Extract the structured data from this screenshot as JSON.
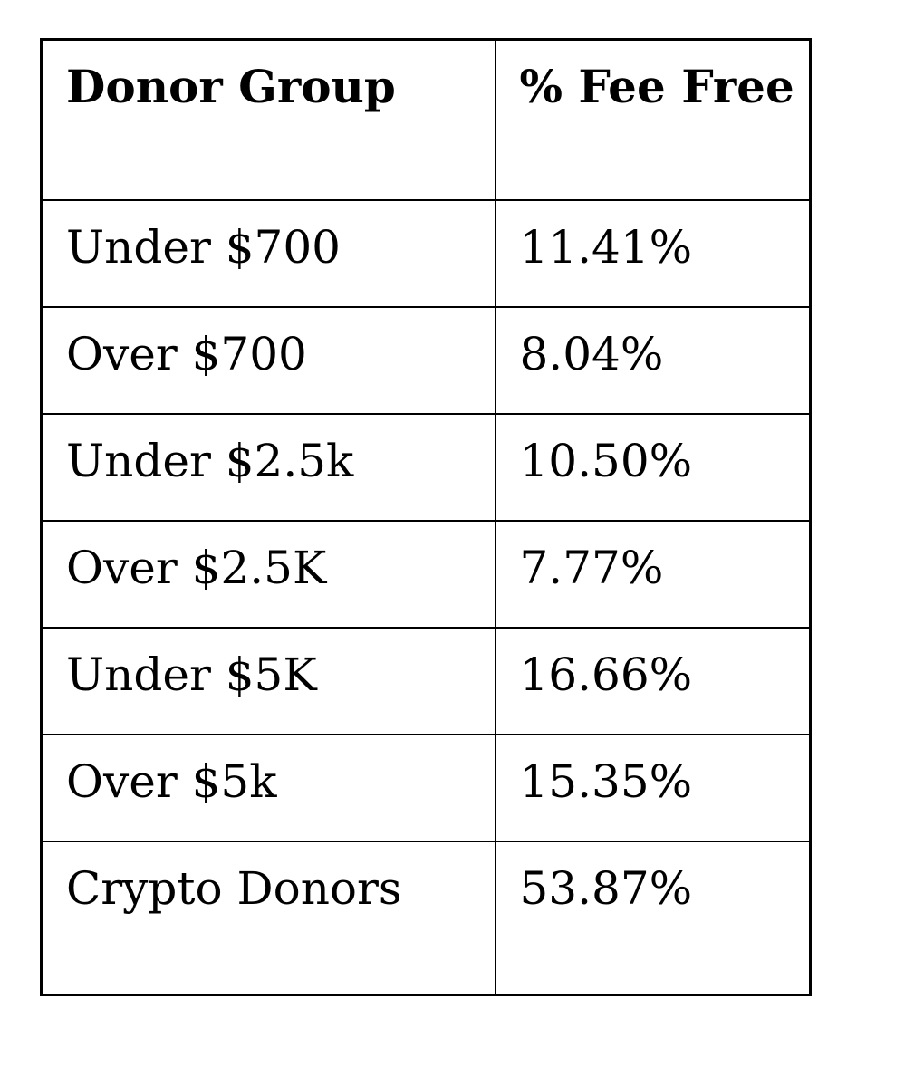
{
  "table": {
    "columns": [
      {
        "label": "Donor Group"
      },
      {
        "label": "% Fee Free"
      }
    ],
    "rows": [
      {
        "group": "Under $700",
        "fee_free": "11.41%"
      },
      {
        "group": "Over $700",
        "fee_free": "8.04%"
      },
      {
        "group": "Under $2.5k",
        "fee_free": "10.50%"
      },
      {
        "group": "Over $2.5K",
        "fee_free": "7.77%"
      },
      {
        "group": "Under $5K",
        "fee_free": "16.66%"
      },
      {
        "group": "Over $5k",
        "fee_free": "15.35%"
      },
      {
        "group": "Crypto Donors",
        "fee_free": "53.87%"
      }
    ],
    "border_color": "#000000",
    "text_color": "#000000",
    "background_color": "#ffffff"
  },
  "chart_data": {
    "type": "table",
    "title": "",
    "columns": [
      "Donor Group",
      "% Fee Free"
    ],
    "categories": [
      "Under $700",
      "Over $700",
      "Under $2.5k",
      "Over $2.5K",
      "Under $5K",
      "Over $5k",
      "Crypto Donors"
    ],
    "values": [
      11.41,
      8.04,
      10.5,
      7.77,
      16.66,
      15.35,
      53.87
    ],
    "unit": "%"
  }
}
